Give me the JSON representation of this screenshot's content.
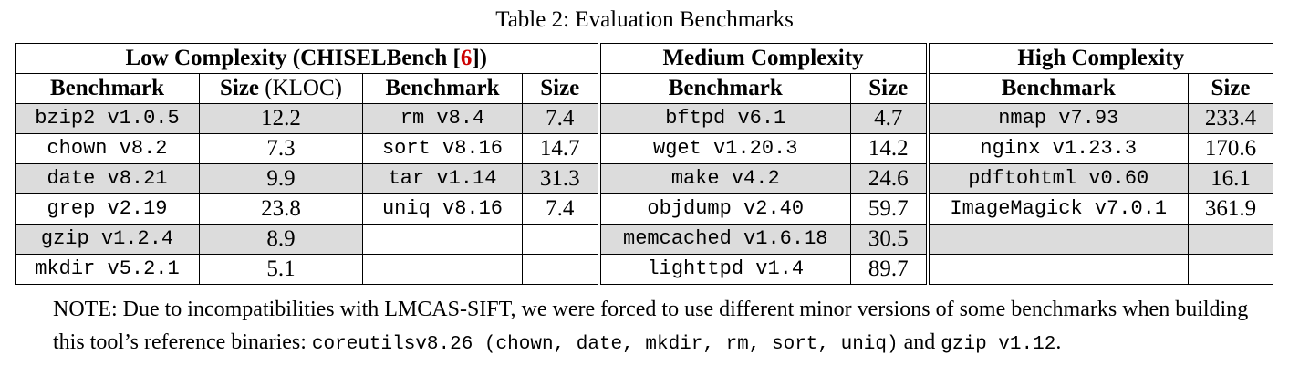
{
  "caption": "Table 2: Evaluation Benchmarks",
  "groups": {
    "low": {
      "title_pre": "Low Complexity (CHISELBench [",
      "ref": "6",
      "title_post": "])"
    },
    "medium": {
      "title": "Medium Complexity"
    },
    "high": {
      "title": "High Complexity"
    }
  },
  "headers": {
    "benchmark": "Benchmark",
    "size_bold": "Size",
    "size_unit": " (KLOC)",
    "size": "Size"
  },
  "low_a": [
    {
      "name": "bzip2 v1.0.5",
      "size": "12.2"
    },
    {
      "name": "chown v8.2",
      "size": "7.3"
    },
    {
      "name": "date v8.21",
      "size": "9.9"
    },
    {
      "name": "grep v2.19",
      "size": "23.8"
    },
    {
      "name": "gzip v1.2.4",
      "size": "8.9"
    },
    {
      "name": "mkdir v5.2.1",
      "size": "5.1"
    }
  ],
  "low_b": [
    {
      "name": "rm v8.4",
      "size": "7.4"
    },
    {
      "name": "sort v8.16",
      "size": "14.7"
    },
    {
      "name": "tar v1.14",
      "size": "31.3"
    },
    {
      "name": "uniq v8.16",
      "size": "7.4"
    },
    {
      "name": "",
      "size": ""
    },
    {
      "name": "",
      "size": ""
    }
  ],
  "medium": [
    {
      "name": "bftpd v6.1",
      "size": "4.7"
    },
    {
      "name": "wget v1.20.3",
      "size": "14.2"
    },
    {
      "name": "make v4.2",
      "size": "24.6"
    },
    {
      "name": "objdump v2.40",
      "size": "59.7"
    },
    {
      "name": "memcached v1.6.18",
      "size": "30.5"
    },
    {
      "name": "lighttpd v1.4",
      "size": "89.7"
    }
  ],
  "high": [
    {
      "name": "nmap v7.93",
      "size": "233.4"
    },
    {
      "name": "nginx v1.23.3",
      "size": "170.6"
    },
    {
      "name": "pdftohtml v0.60",
      "size": "16.1"
    },
    {
      "name": "ImageMagick v7.0.1",
      "size": "361.9"
    },
    {
      "name": "",
      "size": ""
    },
    {
      "name": "",
      "size": ""
    }
  ],
  "note": {
    "part1": "NOTE: Due to incompatibilities with LMCAS-SIFT, we were forced to use different minor versions of some benchmarks when building this tool’s reference binaries: ",
    "code1": "coreutilsv8.26 (chown, date, mkdir, rm, sort, uniq)",
    "part2": " and ",
    "code2": "gzip v1.12",
    "part3": "."
  }
}
